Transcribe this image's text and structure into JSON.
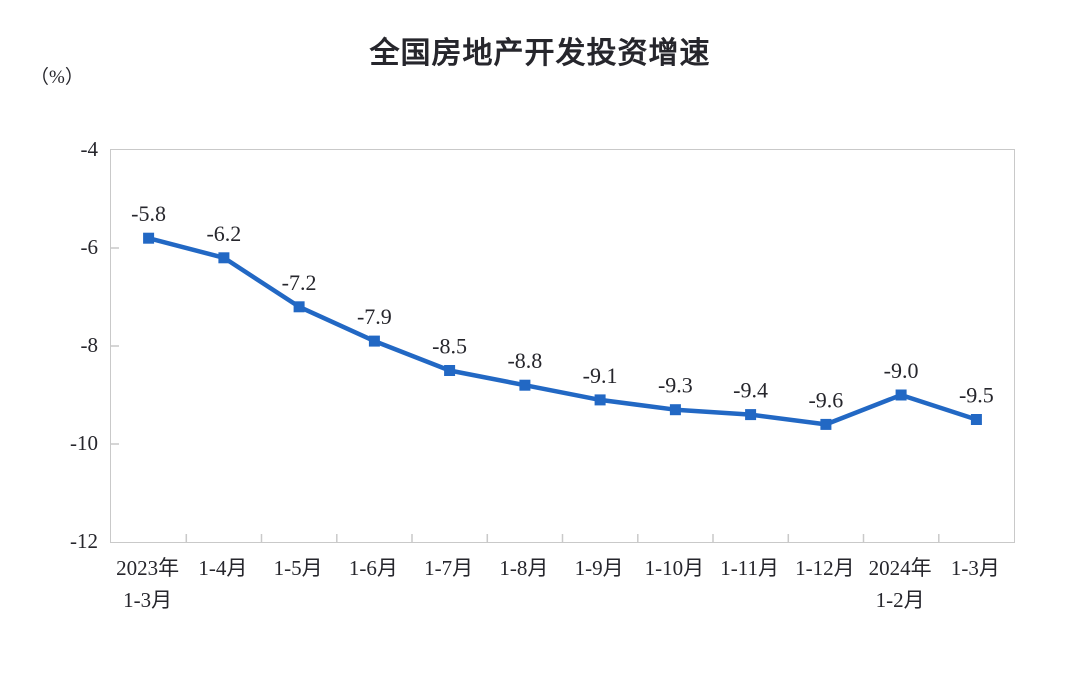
{
  "page": {
    "background": "#ffffff"
  },
  "chart_data": {
    "type": "line",
    "title": "全国房地产开发投资增速",
    "unit_label": "（%）",
    "categories": [
      [
        "2023年",
        "1-3月"
      ],
      [
        "1-4月"
      ],
      [
        "1-5月"
      ],
      [
        "1-6月"
      ],
      [
        "1-7月"
      ],
      [
        "1-8月"
      ],
      [
        "1-9月"
      ],
      [
        "1-10月"
      ],
      [
        "1-11月"
      ],
      [
        "1-12月"
      ],
      [
        "2024年",
        "1-2月"
      ],
      [
        "1-3月"
      ]
    ],
    "values": [
      -5.8,
      -6.2,
      -7.2,
      -7.9,
      -8.5,
      -8.8,
      -9.1,
      -9.3,
      -9.4,
      -9.6,
      -9.0,
      -9.5
    ],
    "point_labels": [
      "-5.8",
      "-6.2",
      "-7.2",
      "-7.9",
      "-8.5",
      "-8.8",
      "-9.1",
      "-9.3",
      "-9.4",
      "-9.6",
      "-9.0",
      "-9.5"
    ],
    "xlabel": "",
    "ylabel": "（%）",
    "ylim": [
      -12,
      -4
    ],
    "yticks": [
      {
        "label": "-4",
        "value": -4
      },
      {
        "label": "-6",
        "value": -6
      },
      {
        "label": "-8",
        "value": -8
      },
      {
        "label": "-10",
        "value": -10
      },
      {
        "label": "-12",
        "value": -12
      }
    ],
    "grid": false,
    "legend": "none",
    "colors": {
      "line": "#2268c4",
      "text": "#26262c",
      "axis": "#c9c9c9"
    }
  }
}
